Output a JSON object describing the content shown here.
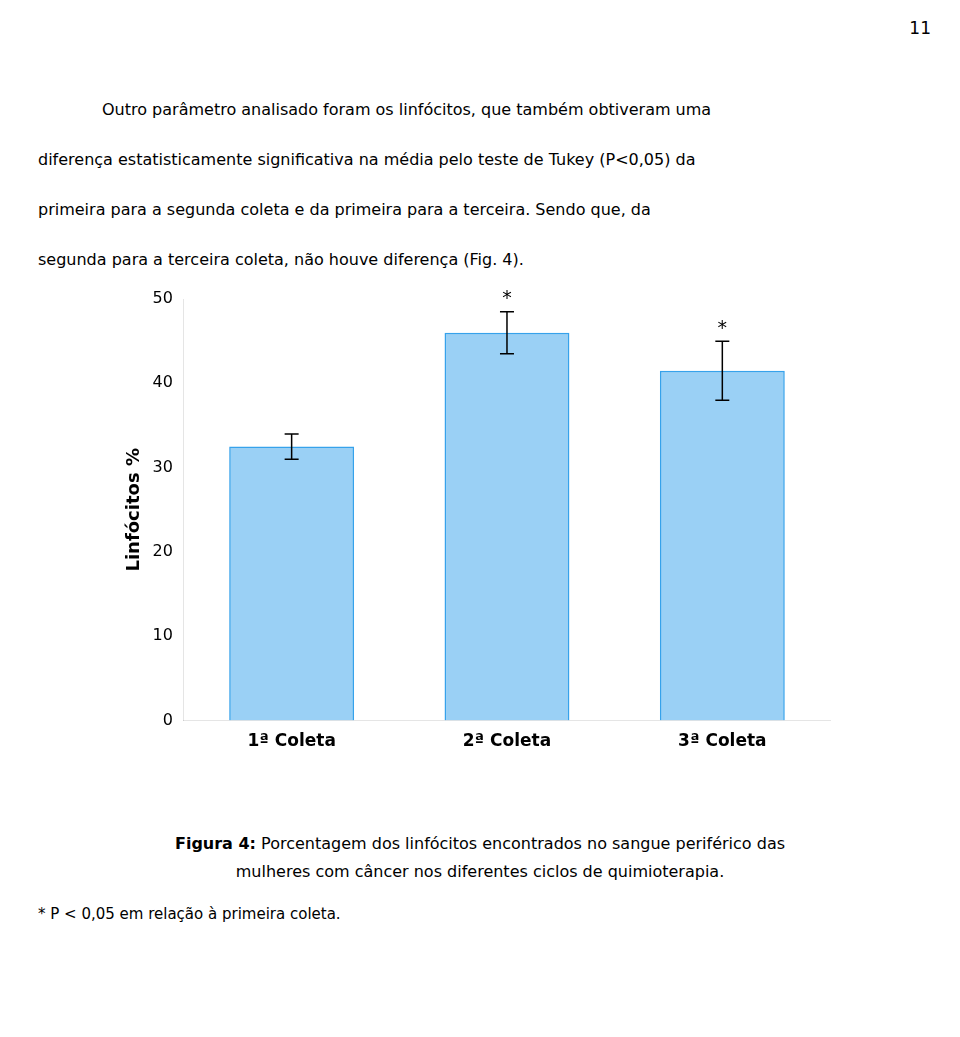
{
  "page_number": "11",
  "paragraph": [
    "Outro parâmetro analisado foram os linfócitos, que também obtiveram uma",
    "diferença estatisticamente significativa na média pelo teste de Tukey (P<0,05) da",
    "primeira para a segunda coleta e da primeira para a terceira. Sendo que, da",
    "segunda para a terceira coleta, não houve diferença (Fig. 4)."
  ],
  "caption_label": "Figura 4:",
  "caption": [
    "Porcentagem dos linfócitos encontrados no sangue periférico das",
    "mulheres com câncer nos diferentes ciclos de quimioterapia."
  ],
  "footnote": "* P < 0,05 em relação à primeira coleta.",
  "chart_data": {
    "type": "bar",
    "categories": [
      "1ª Coleta",
      "2ª Coleta",
      "3ª Coleta"
    ],
    "values": [
      32.5,
      46.0,
      41.5
    ],
    "errors": [
      1.5,
      2.5,
      3.5
    ],
    "significance": [
      null,
      "*",
      "*"
    ],
    "ylabel": "Linfócitos %",
    "ylim": [
      0,
      50
    ],
    "yticks": [
      0,
      10,
      20,
      30,
      40,
      50
    ],
    "grid": false
  }
}
